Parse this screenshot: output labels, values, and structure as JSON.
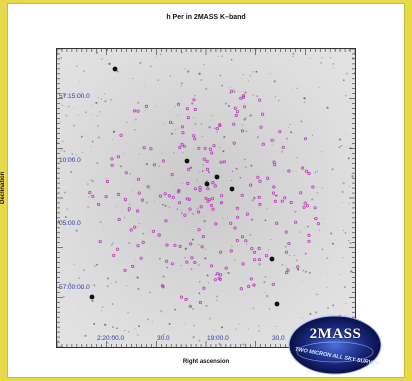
{
  "figure": {
    "title": "h Per in 2MASS K–band",
    "xlabel": "Right ascension",
    "ylabel": "Declination",
    "ra_ticks": [
      "2:20:00.0",
      "30.0",
      "19:00.0",
      "30.0"
    ],
    "dec_ticks": [
      "57:15:00.0",
      "10:00.0",
      "05:00.0",
      "57:00:00.0"
    ]
  },
  "logo": {
    "text": "2MASS",
    "subtitle": "TWO MICRON ALL SKY SURVEY"
  },
  "colors": {
    "background": "#e8d94a",
    "tick_text": "#2d3aa8",
    "marker": "#c13bc1"
  }
}
